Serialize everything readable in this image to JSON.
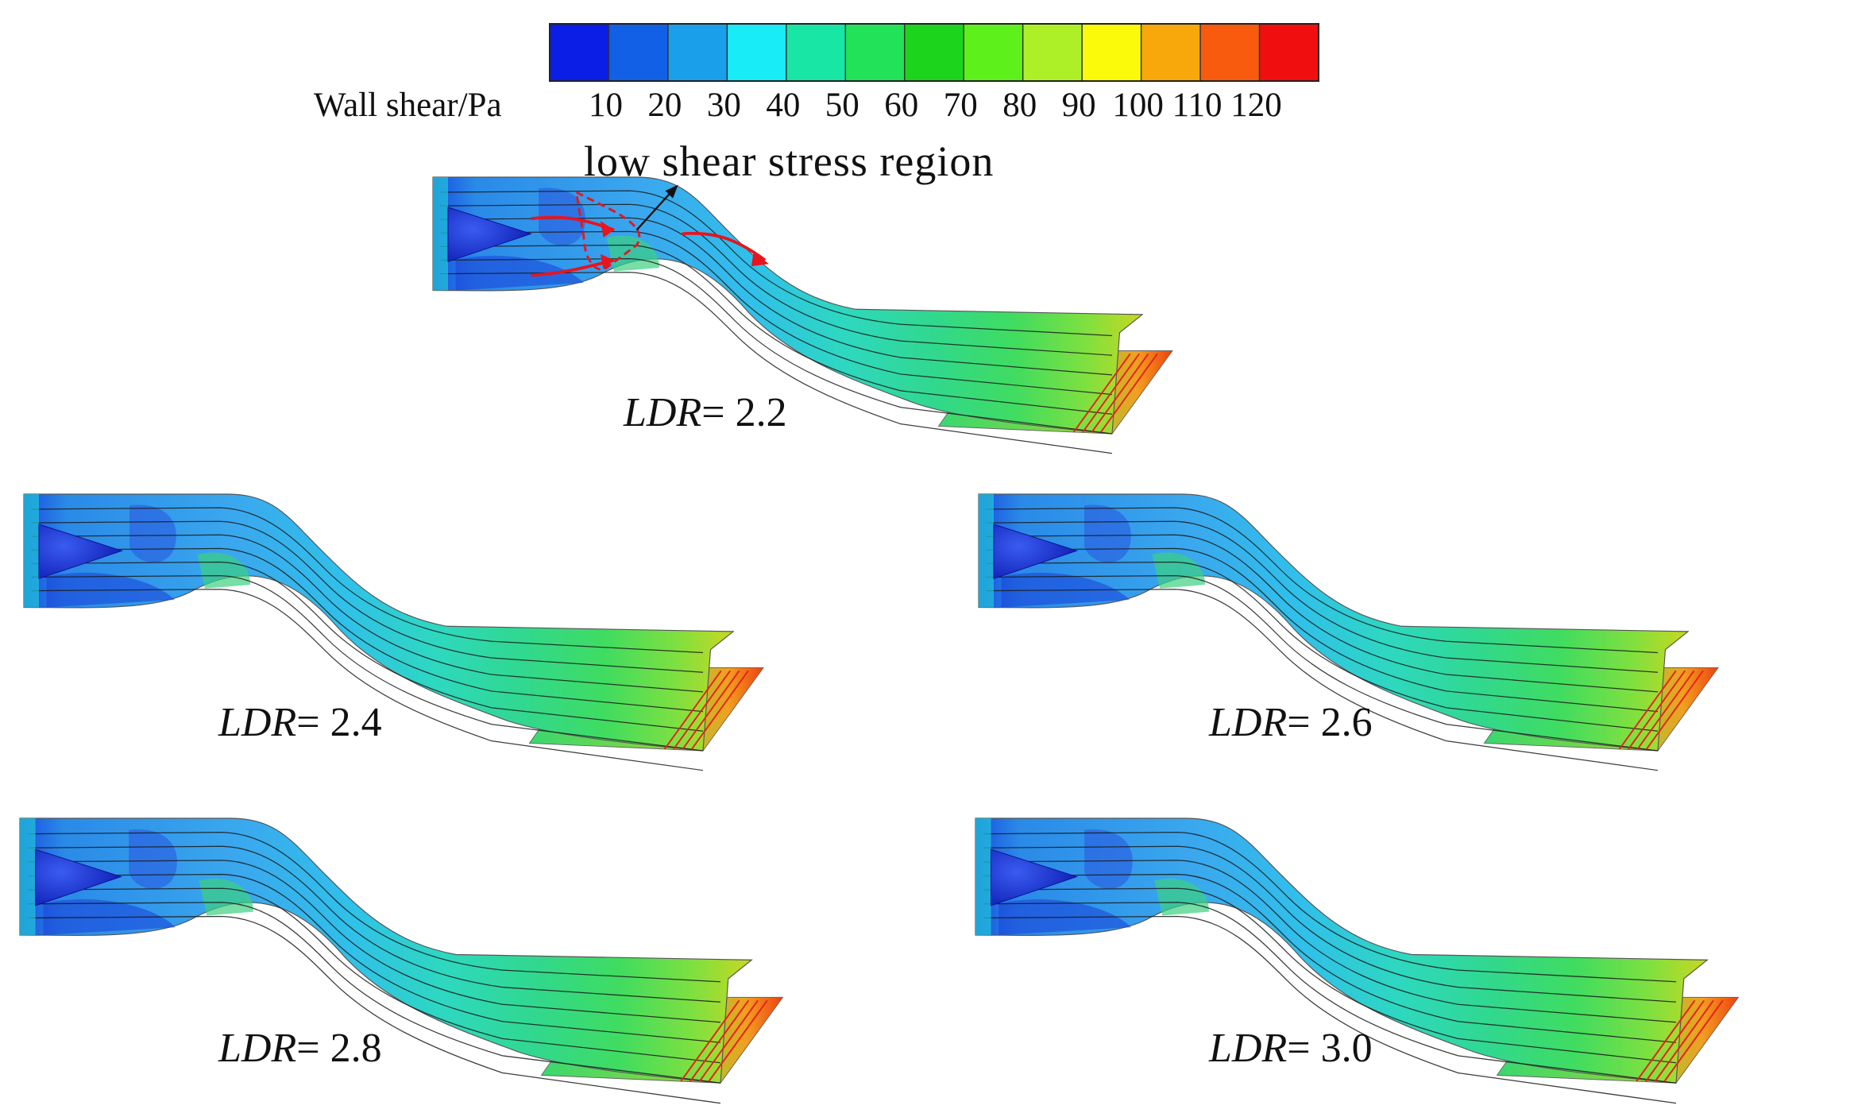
{
  "colorbar": {
    "title": "Wall shear/Pa",
    "ticks": [
      "10",
      "20",
      "30",
      "40",
      "50",
      "60",
      "70",
      "80",
      "90",
      "100",
      "110",
      "120"
    ],
    "colors": [
      "#0a1ee6",
      "#1260e6",
      "#1aa0ea",
      "#18ecf6",
      "#17e6a4",
      "#22e25a",
      "#1cd41c",
      "#5ef01a",
      "#aef028",
      "#fafa0a",
      "#f8a80a",
      "#f85a0e",
      "#f00e0e"
    ]
  },
  "annotation": "low shear stress region",
  "cases": [
    {
      "label_prefix": "LDR",
      "label_value": "= 2.2"
    },
    {
      "label_prefix": "LDR",
      "label_value": "= 2.4"
    },
    {
      "label_prefix": "LDR",
      "label_value": "= 2.6"
    },
    {
      "label_prefix": "LDR",
      "label_value": "= 2.8"
    },
    {
      "label_prefix": "LDR",
      "label_value": "= 3.0"
    }
  ],
  "colors": {
    "streamline": "#1a1a1a",
    "annotation_arrow": "#e8141e",
    "cone": "#1428c8"
  }
}
